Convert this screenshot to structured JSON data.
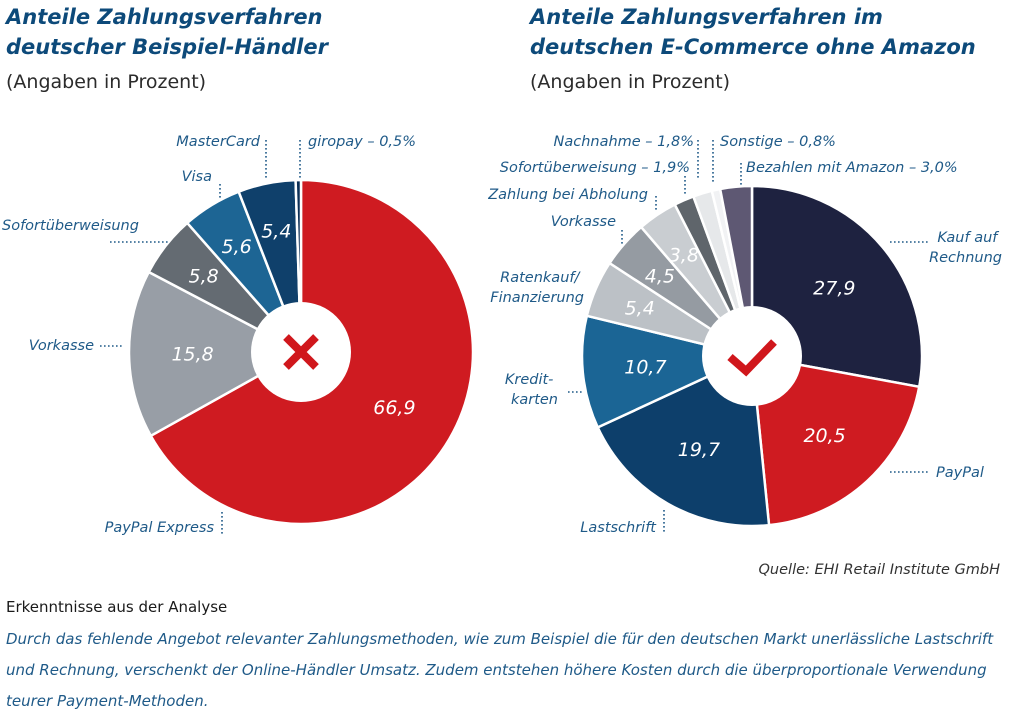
{
  "source": "Quelle: EHI Retail Institute GmbH",
  "findings": {
    "heading": "Erkenntnisse aus der Analyse",
    "text": "Durch das fehlende Angebot relevanter Zahlungsmethoden, wie zum Beispiel die für den deutschen Markt unerlässliche Lastschrift und Rechnung, verschenkt der Online-Händler Umsatz. Zudem entstehen höhere Kosten durch die überproportionale Verwendung teurer Payment-Methoden."
  },
  "chart_data": [
    {
      "type": "pie",
      "title": "Anteile Zahlungsverfahren deutscher Beispiel-Händler",
      "subtitle": "(Angaben in Prozent)",
      "center_icon": "cross-icon",
      "center_icon_color": "#d0171c",
      "slices": [
        {
          "label": "PayPal Express",
          "value": 66.9,
          "value_label": "66,9",
          "color": "#cf1b21"
        },
        {
          "label": "Vorkasse",
          "value": 15.8,
          "value_label": "15,8",
          "color": "#989ea6"
        },
        {
          "label": "Sofortüberweisung",
          "value": 5.8,
          "value_label": "5,8",
          "color": "#646b72"
        },
        {
          "label": "Visa",
          "value": 5.6,
          "value_label": "5,6",
          "color": "#1d6594"
        },
        {
          "label": "MasterCard",
          "value": 5.4,
          "value_label": "5,4",
          "color": "#0f406b"
        },
        {
          "label": "giropay – 0,5%",
          "value": 0.5,
          "value_label": "",
          "color": "#0a2e55"
        }
      ]
    },
    {
      "type": "pie",
      "title": "Anteile Zahlungsverfahren im deutschen E-Commerce ohne Amazon",
      "subtitle": "(Angaben in Prozent)",
      "center_icon": "check-icon",
      "center_icon_color": "#d0171c",
      "slices": [
        {
          "label": "Kauf auf Rechnung",
          "value": 27.9,
          "value_label": "27,9",
          "color": "#1e2240"
        },
        {
          "label": "PayPal",
          "value": 20.5,
          "value_label": "20,5",
          "color": "#cf1b21"
        },
        {
          "label": "Lastschrift",
          "value": 19.7,
          "value_label": "19,7",
          "color": "#0d3f6b"
        },
        {
          "label": "Kredit-karten",
          "value": 10.7,
          "value_label": "10,7",
          "color": "#1b6595"
        },
        {
          "label": "Ratenkauf/ Finanzierung",
          "value": 5.4,
          "value_label": "5,4",
          "color": "#bcc1c6"
        },
        {
          "label": "Vorkasse",
          "value": 4.5,
          "value_label": "4,5",
          "color": "#959ba2"
        },
        {
          "label": "Zahlung bei Abholung",
          "value": 3.8,
          "value_label": "3,8",
          "color": "#c9cdd1"
        },
        {
          "label": "Sofortüberweisung – 1,9%",
          "value": 1.9,
          "value_label": "",
          "color": "#5f656b"
        },
        {
          "label": "Nachnahme – 1,8%",
          "value": 1.8,
          "value_label": "",
          "color": "#e6e8ea"
        },
        {
          "label": "Sonstige – 0,8%",
          "value": 0.8,
          "value_label": "",
          "color": "#f1f2f4"
        },
        {
          "label": "Bezahlen mit Amazon – 3,0%",
          "value": 3.0,
          "value_label": "",
          "color": "#5e5873"
        }
      ]
    }
  ]
}
